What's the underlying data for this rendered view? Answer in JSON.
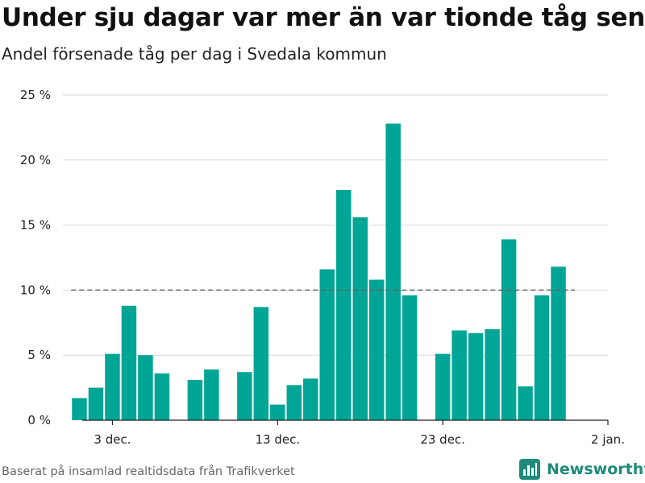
{
  "header": {
    "title": "Under sju dagar var mer än var tionde tåg sent",
    "subtitle": "Andel försenade tåg per dag i Svedala kommun"
  },
  "footer": {
    "source": "Baserat på insamlad realtidsdata från Trafikverket",
    "brand": "Newsworthy"
  },
  "colors": {
    "bar": "#00a595",
    "reference_line": "#666666",
    "grid": "#d9d9d9",
    "brand": "#1f8a7a"
  },
  "chart_data": {
    "type": "bar",
    "x": [
      "2021-12-01",
      "2021-12-02",
      "2021-12-03",
      "2021-12-04",
      "2021-12-05",
      "2021-12-06",
      "2021-12-07",
      "2021-12-08",
      "2021-12-09",
      "2021-12-10",
      "2021-12-11",
      "2021-12-12",
      "2021-12-13",
      "2021-12-14",
      "2021-12-15",
      "2021-12-16",
      "2021-12-17",
      "2021-12-18",
      "2021-12-19",
      "2021-12-20",
      "2021-12-21",
      "2021-12-22",
      "2021-12-23",
      "2021-12-24",
      "2021-12-25",
      "2021-12-26",
      "2021-12-27",
      "2021-12-28",
      "2021-12-29",
      "2021-12-30"
    ],
    "values": [
      1.7,
      2.5,
      5.1,
      8.8,
      5.0,
      3.6,
      null,
      3.1,
      3.9,
      null,
      3.7,
      8.7,
      1.2,
      2.7,
      3.2,
      11.6,
      17.7,
      15.6,
      10.8,
      22.8,
      9.6,
      null,
      5.1,
      6.9,
      6.7,
      7.0,
      13.9,
      2.6,
      9.6,
      11.8
    ],
    "ylim": [
      0,
      25
    ],
    "yticks": [
      0,
      5,
      10,
      15,
      20,
      25
    ],
    "ytick_labels": [
      "0 %",
      "5 %",
      "10 %",
      "15 %",
      "20 %",
      "25 %"
    ],
    "xticks": [
      "2021-12-03",
      "2021-12-13",
      "2021-12-23",
      "2022-01-02"
    ],
    "xtick_labels": [
      "3 dec.",
      "13 dec.",
      "23 dec.",
      "2 jan."
    ],
    "xlim": [
      "2021-11-30",
      "2022-01-02"
    ],
    "reference_line": 10,
    "grid": true
  }
}
